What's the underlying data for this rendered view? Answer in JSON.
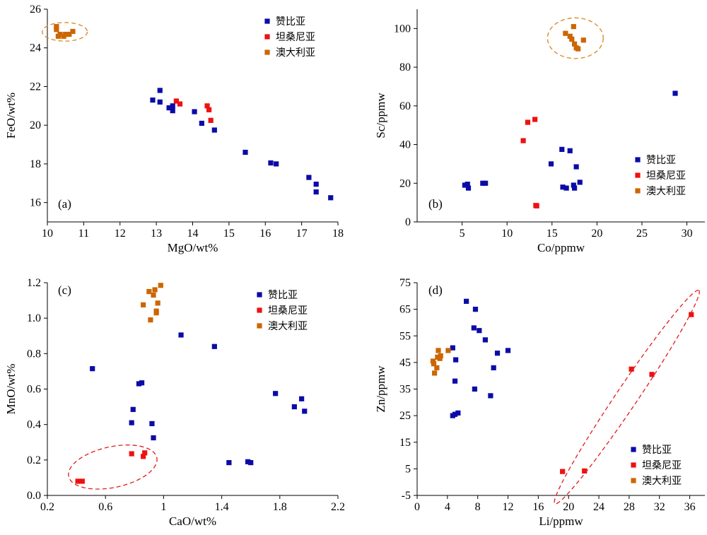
{
  "colors": {
    "zambia": "#0b0ba8",
    "tanzania": "#ee1111",
    "australia": "#cc6600",
    "ellipse_orange": "#d9861a",
    "ellipse_red": "#e31a1c"
  },
  "chart_data": [
    {
      "type": "scatter",
      "panel_label": "(a)",
      "xlabel": "MgO/wt%",
      "ylabel": "FeO/wt%",
      "xlim": [
        10,
        18
      ],
      "ylim": [
        15,
        26
      ],
      "xticks": [
        10,
        11,
        12,
        13,
        14,
        15,
        16,
        17,
        18
      ],
      "yticks": [
        16,
        18,
        20,
        22,
        24,
        26
      ],
      "legend_position": "top-right",
      "series": [
        {
          "name": "赞比亚",
          "color": "#0b0ba8",
          "points": [
            [
              12.9,
              21.3
            ],
            [
              13.1,
              21.8
            ],
            [
              13.1,
              21.2
            ],
            [
              13.35,
              20.9
            ],
            [
              13.45,
              21.0
            ],
            [
              13.45,
              20.75
            ],
            [
              14.05,
              20.7
            ],
            [
              14.25,
              20.1
            ],
            [
              14.6,
              19.75
            ],
            [
              15.45,
              18.6
            ],
            [
              16.15,
              18.05
            ],
            [
              16.3,
              18.0
            ],
            [
              17.2,
              17.3
            ],
            [
              17.4,
              16.95
            ],
            [
              17.4,
              16.55
            ],
            [
              17.8,
              16.25
            ]
          ]
        },
        {
          "name": "坦桑尼亚",
          "color": "#ee1111",
          "points": [
            [
              13.55,
              21.25
            ],
            [
              13.65,
              21.1
            ],
            [
              14.4,
              21.0
            ],
            [
              14.45,
              20.8
            ],
            [
              14.5,
              20.25
            ]
          ]
        },
        {
          "name": "澳大利亚",
          "color": "#cc6600",
          "points": [
            [
              10.25,
              25.1
            ],
            [
              10.25,
              24.95
            ],
            [
              10.3,
              24.6
            ],
            [
              10.35,
              24.7
            ],
            [
              10.45,
              24.6
            ],
            [
              10.5,
              24.7
            ],
            [
              10.6,
              24.7
            ],
            [
              10.7,
              24.85
            ]
          ]
        }
      ],
      "ellipses": [
        {
          "cx": 10.48,
          "cy": 24.83,
          "rx": 0.62,
          "ry": 0.48,
          "color": "#d9861a"
        }
      ]
    },
    {
      "type": "scatter",
      "panel_label": "(b)",
      "xlabel": "Co/ppmw",
      "ylabel": "Sc/ppmw",
      "xlim": [
        0,
        32
      ],
      "ylim": [
        0,
        110
      ],
      "xticks": [
        5,
        10,
        15,
        20,
        25,
        30
      ],
      "yticks": [
        0,
        20,
        40,
        60,
        80,
        100
      ],
      "legend_position": "bottom-right",
      "series": [
        {
          "name": "赞比亚",
          "color": "#0b0ba8",
          "points": [
            [
              5.3,
              19.0
            ],
            [
              5.6,
              19.5
            ],
            [
              5.7,
              17.5
            ],
            [
              7.3,
              20.0
            ],
            [
              7.6,
              20.0
            ],
            [
              14.9,
              30.0
            ],
            [
              16.1,
              37.5
            ],
            [
              16.2,
              18.0
            ],
            [
              16.6,
              17.5
            ],
            [
              17.0,
              36.8
            ],
            [
              17.4,
              19.0
            ],
            [
              17.5,
              17.5
            ],
            [
              17.7,
              28.5
            ],
            [
              18.1,
              20.5
            ],
            [
              28.7,
              66.5
            ]
          ]
        },
        {
          "name": "坦桑尼亚",
          "color": "#ee1111",
          "points": [
            [
              11.8,
              42.0
            ],
            [
              12.3,
              51.5
            ],
            [
              13.1,
              53.0
            ],
            [
              13.2,
              8.5
            ],
            [
              13.3,
              8.3
            ]
          ]
        },
        {
          "name": "澳大利亚",
          "color": "#cc6600",
          "points": [
            [
              16.5,
              97.5
            ],
            [
              17.0,
              96.0
            ],
            [
              17.2,
              94.5
            ],
            [
              17.4,
              101.0
            ],
            [
              17.5,
              92.0
            ],
            [
              17.7,
              90.0
            ],
            [
              17.9,
              89.5
            ],
            [
              18.5,
              94.0
            ]
          ]
        }
      ],
      "ellipses": [
        {
          "cx": 17.6,
          "cy": 95.0,
          "rx": 3.1,
          "ry": 10.5,
          "color": "#d9861a"
        }
      ]
    },
    {
      "type": "scatter",
      "panel_label": "(c)",
      "xlabel": "CaO/wt%",
      "ylabel": "MnO/wt%",
      "xlim": [
        0.2,
        2.2
      ],
      "ylim": [
        0.0,
        1.2
      ],
      "xticks": [
        0.2,
        0.6,
        1.0,
        1.4,
        1.8,
        2.2
      ],
      "yticks": [
        0.0,
        0.2,
        0.4,
        0.6,
        0.8,
        1.0,
        1.2
      ],
      "legend_position": "top-right",
      "series": [
        {
          "name": "赞比亚",
          "color": "#0b0ba8",
          "points": [
            [
              0.51,
              0.715
            ],
            [
              0.78,
              0.41
            ],
            [
              0.79,
              0.485
            ],
            [
              0.83,
              0.63
            ],
            [
              0.85,
              0.635
            ],
            [
              0.92,
              0.405
            ],
            [
              0.93,
              0.325
            ],
            [
              1.12,
              0.905
            ],
            [
              1.35,
              0.84
            ],
            [
              1.45,
              0.185
            ],
            [
              1.58,
              0.19
            ],
            [
              1.6,
              0.185
            ],
            [
              1.77,
              0.575
            ],
            [
              1.9,
              0.5
            ],
            [
              1.95,
              0.545
            ],
            [
              1.97,
              0.475
            ]
          ]
        },
        {
          "name": "坦桑尼亚",
          "color": "#ee1111",
          "points": [
            [
              0.41,
              0.08
            ],
            [
              0.44,
              0.08
            ],
            [
              0.78,
              0.235
            ],
            [
              0.86,
              0.22
            ],
            [
              0.87,
              0.24
            ]
          ]
        },
        {
          "name": "澳大利亚",
          "color": "#cc6600",
          "points": [
            [
              0.86,
              1.075
            ],
            [
              0.9,
              1.15
            ],
            [
              0.91,
              0.99
            ],
            [
              0.93,
              1.13
            ],
            [
              0.94,
              1.16
            ],
            [
              0.95,
              1.04
            ],
            [
              0.95,
              1.03
            ],
            [
              0.96,
              1.085
            ],
            [
              0.98,
              1.185
            ]
          ]
        }
      ],
      "ellipses": [
        {
          "cx": 0.65,
          "cy": 0.16,
          "rx": 0.31,
          "ry": 0.115,
          "angle": -12,
          "color": "#e31a1c"
        }
      ]
    },
    {
      "type": "scatter",
      "panel_label": "(d)",
      "xlabel": "Li/ppmw",
      "ylabel": "Zn/ppmw",
      "xlim": [
        0,
        38
      ],
      "ylim": [
        -5,
        75
      ],
      "xticks": [
        0,
        4,
        8,
        12,
        16,
        20,
        24,
        28,
        32,
        36
      ],
      "yticks": [
        -5,
        5,
        15,
        25,
        35,
        45,
        55,
        65,
        75
      ],
      "legend_position": "bottom-right",
      "series": [
        {
          "name": "赞比亚",
          "color": "#0b0ba8",
          "points": [
            [
              4.7,
              25.0
            ],
            [
              5.0,
              25.5
            ],
            [
              5.4,
              26.0
            ],
            [
              4.7,
              50.5
            ],
            [
              5.0,
              38.0
            ],
            [
              5.1,
              46.0
            ],
            [
              6.5,
              68.0
            ],
            [
              7.5,
              58.0
            ],
            [
              7.6,
              35.0
            ],
            [
              7.7,
              65.0
            ],
            [
              8.2,
              57.0
            ],
            [
              9.0,
              53.5
            ],
            [
              9.7,
              32.5
            ],
            [
              10.1,
              43.0
            ],
            [
              10.6,
              48.5
            ],
            [
              12.0,
              49.5
            ]
          ]
        },
        {
          "name": "坦桑尼亚",
          "color": "#ee1111",
          "points": [
            [
              19.2,
              4.0
            ],
            [
              22.1,
              4.2
            ],
            [
              28.3,
              42.5
            ],
            [
              31.0,
              40.5
            ],
            [
              36.2,
              63.0
            ]
          ]
        },
        {
          "name": "澳大利亚",
          "color": "#cc6600",
          "points": [
            [
              2.1,
              45.5
            ],
            [
              2.2,
              44.5
            ],
            [
              2.3,
              41.0
            ],
            [
              2.6,
              43.0
            ],
            [
              2.7,
              47.0
            ],
            [
              2.8,
              49.5
            ],
            [
              3.0,
              46.5
            ],
            [
              3.1,
              47.5
            ],
            [
              4.1,
              49.5
            ]
          ]
        }
      ],
      "ellipses": [
        {
          "cx": 27.7,
          "cy": 32.0,
          "rx": 17.0,
          "ry": 4.0,
          "angle": -56,
          "color": "#e31a1c"
        }
      ]
    }
  ]
}
